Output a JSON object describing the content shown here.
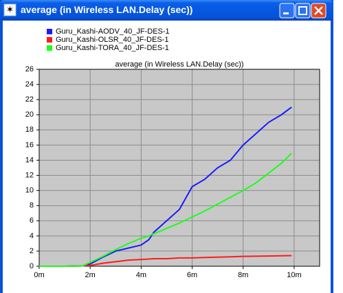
{
  "chart_data": {
    "type": "line",
    "title": "average (in Wireless LAN.Delay (sec))",
    "x": [
      0,
      1,
      1.7,
      2,
      2.5,
      3,
      3.5,
      4,
      4.3,
      4.5,
      5,
      5.5,
      6,
      6.5,
      7,
      7.5,
      8,
      8.5,
      9,
      9.5,
      9.9
    ],
    "series": [
      {
        "name": "Guru_Kashi-AODV_40_JF-DES-1",
        "color": "#1a1aff",
        "values": [
          0,
          0,
          0.05,
          0.3,
          1.2,
          2,
          2.4,
          2.8,
          3.5,
          4.5,
          6,
          7.5,
          10.5,
          11.5,
          13,
          14,
          16,
          17.5,
          19,
          20,
          21
        ]
      },
      {
        "name": "Guru_Kashi-OLSR_40_JF-DES-1",
        "color": "#ff1a1a",
        "values": [
          0,
          0,
          0.05,
          0.1,
          0.4,
          0.6,
          0.8,
          0.9,
          0.95,
          1.0,
          1.0,
          1.1,
          1.1,
          1.15,
          1.2,
          1.25,
          1.3,
          1.32,
          1.35,
          1.38,
          1.4
        ]
      },
      {
        "name": "Guru_Kashi-TORA_40_JF-DES-1",
        "color": "#1aff1a",
        "values": [
          0,
          0,
          0.05,
          0.5,
          1.3,
          2.2,
          3,
          3.7,
          4,
          4.3,
          5,
          5.7,
          6.5,
          7.3,
          8.2,
          9.1,
          10,
          11,
          12.3,
          13.6,
          14.9
        ]
      }
    ],
    "xlim": [
      0,
      11
    ],
    "xticks": [
      {
        "value": 0,
        "label": "0m"
      },
      {
        "value": 2,
        "label": "2m"
      },
      {
        "value": 4,
        "label": "4m"
      },
      {
        "value": 6,
        "label": "6m"
      },
      {
        "value": 8,
        "label": "8m"
      },
      {
        "value": 10,
        "label": "10m"
      }
    ],
    "ylim": [
      0,
      26
    ],
    "yticks": [
      0,
      2,
      4,
      6,
      8,
      10,
      12,
      14,
      16,
      18,
      20,
      22,
      24,
      26
    ],
    "grid": true
  }
}
